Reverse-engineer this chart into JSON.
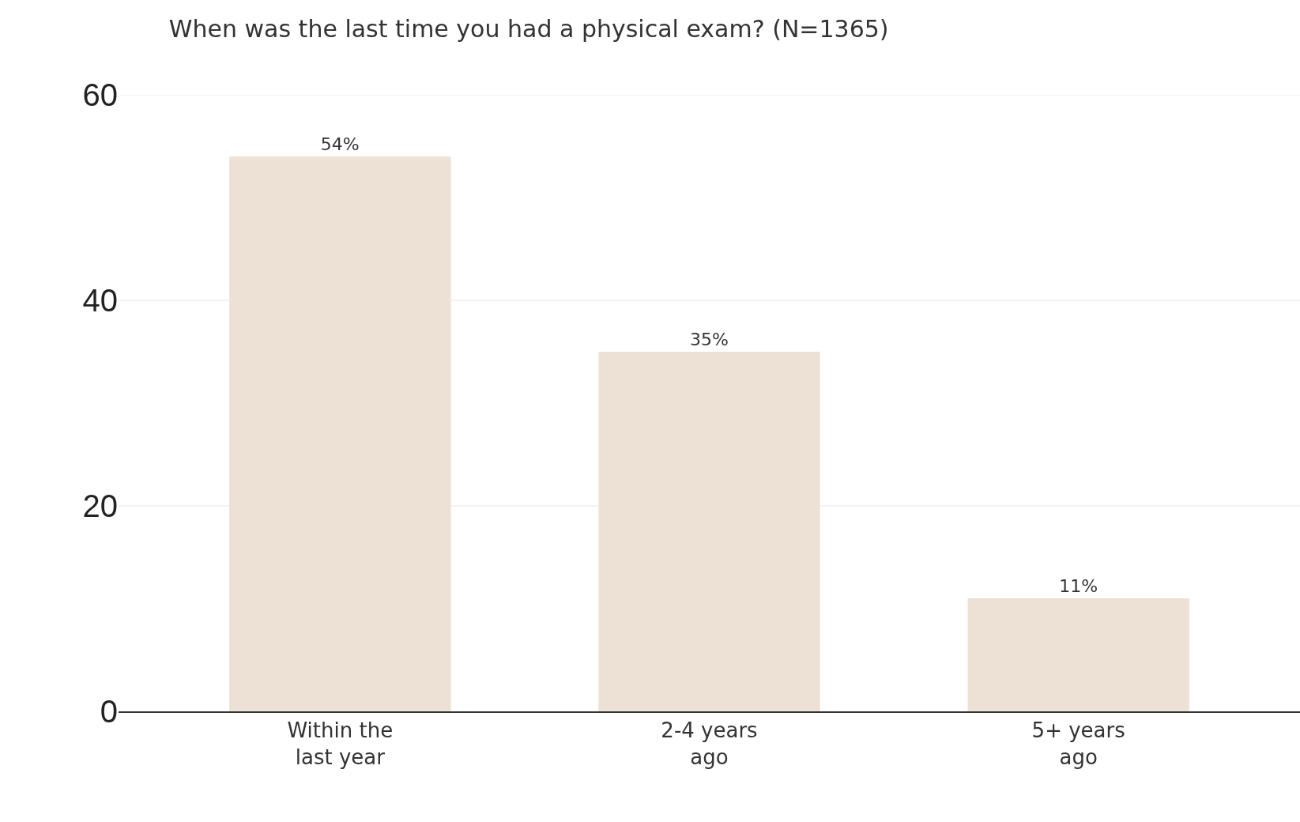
{
  "chart_data": {
    "type": "bar",
    "title": "When was the last time you had a physical exam? (N=1365)",
    "categories": [
      "Within the last year",
      "2-4 years ago",
      "5+ years ago"
    ],
    "values": [
      54,
      35,
      11
    ],
    "value_labels": [
      "54%",
      "35%",
      "11%"
    ],
    "color": "#ede0d4",
    "ylim": [
      0,
      60
    ],
    "yticks": [
      0,
      20,
      40,
      60
    ],
    "grid": "y"
  }
}
